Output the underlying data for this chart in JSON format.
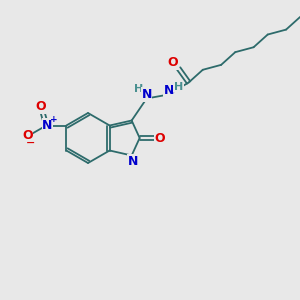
{
  "bg_color": "#e8e8e8",
  "bond_color": "#2d6b6b",
  "atom_colors": {
    "O": "#dd0000",
    "N": "#0000cc",
    "H": "#4a9090"
  },
  "lw": 1.3,
  "fig_w": 3.0,
  "fig_h": 3.0,
  "dpi": 100
}
